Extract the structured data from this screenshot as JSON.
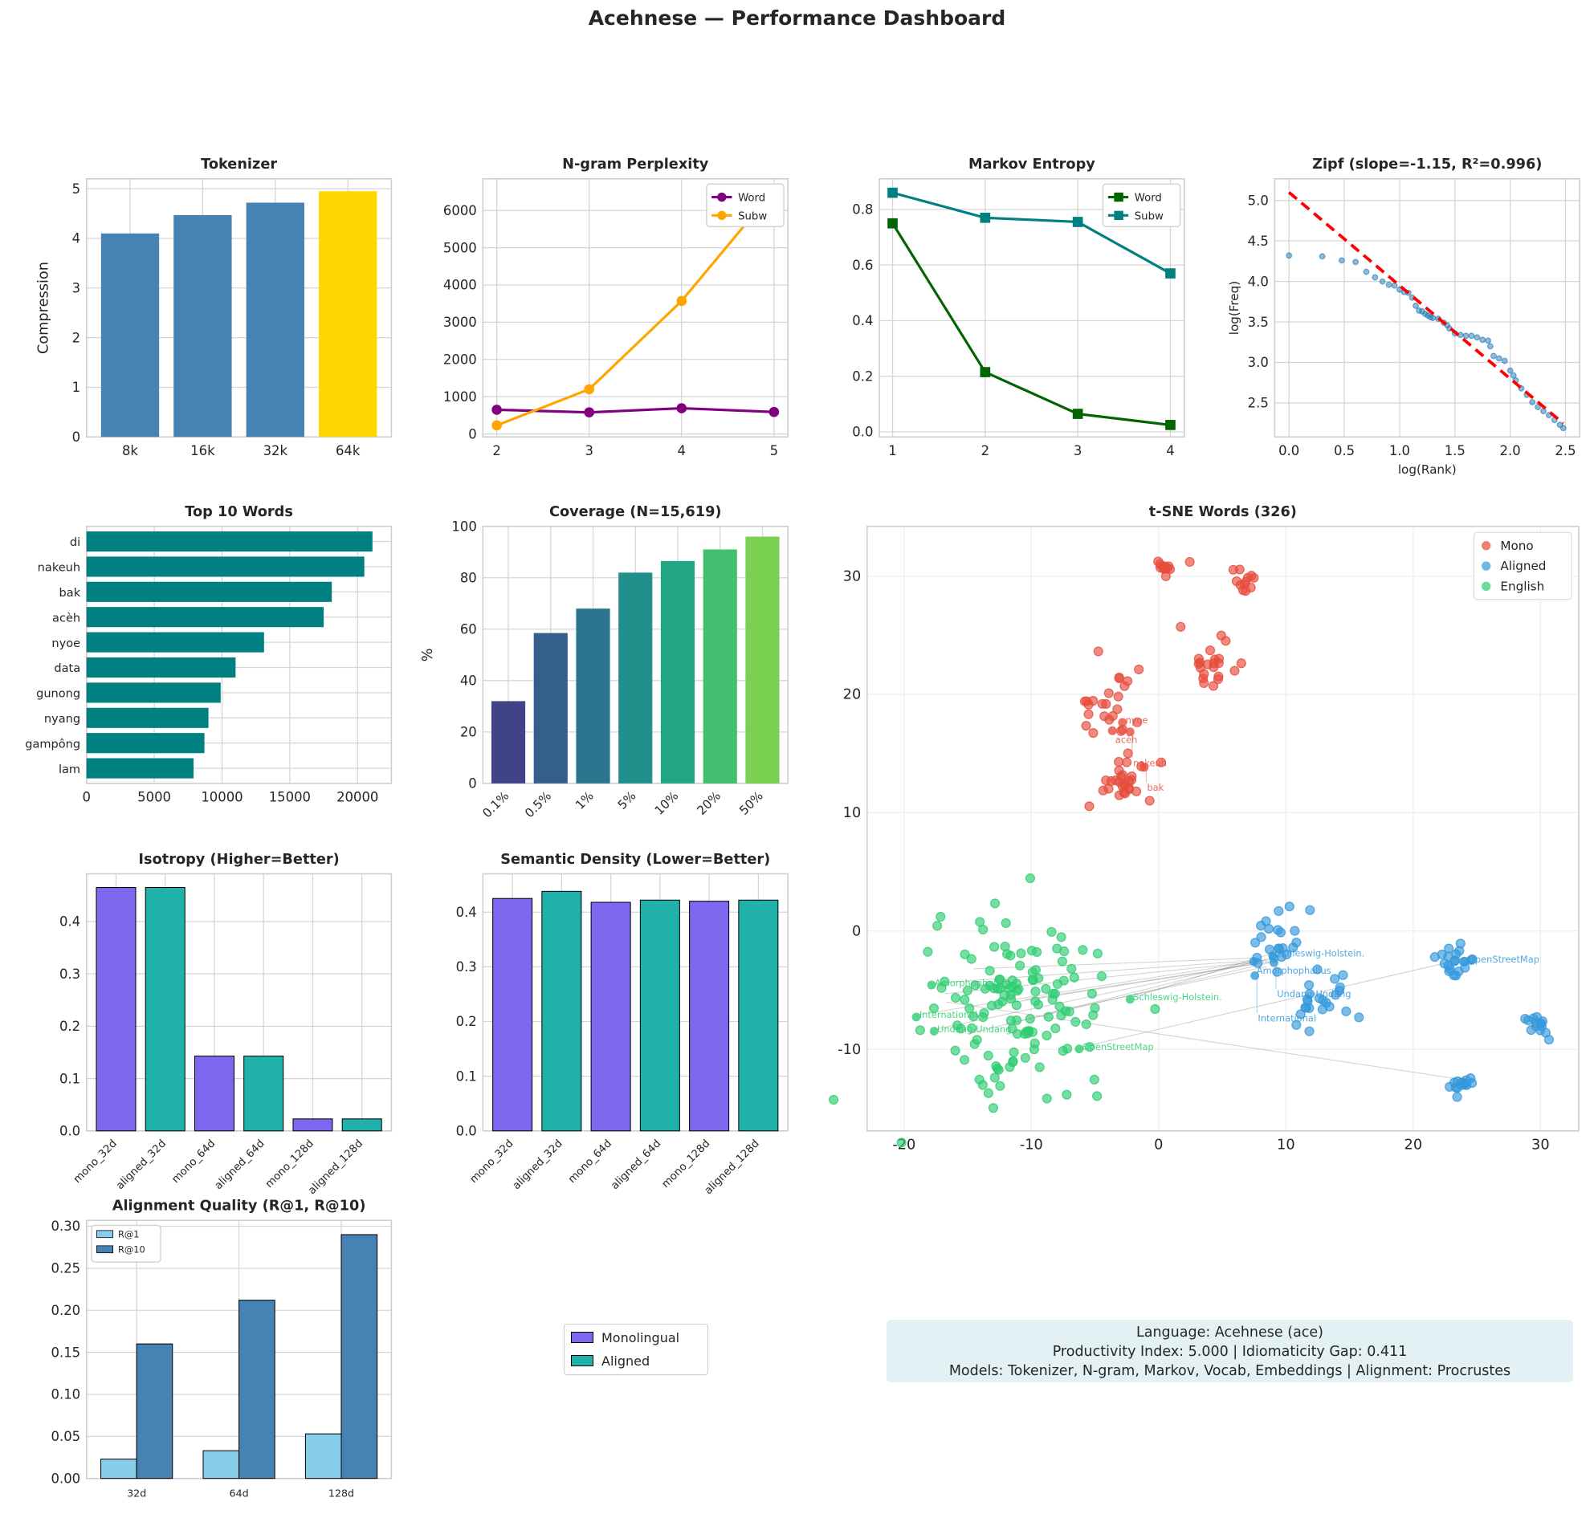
{
  "title": "Acehnese — Performance Dashboard",
  "info_box": {
    "line1": "Language: Acehnese (ace)",
    "line2": "Productivity Index: 5.000  |  Idiomaticity Gap: 0.411",
    "line3": "Models: Tokenizer, N-gram, Markov, Vocab, Embeddings  |  Alignment: Procrustes"
  },
  "shared_legend": {
    "items": [
      {
        "label": "Monolingual",
        "color": "#7b68ee"
      },
      {
        "label": "Aligned",
        "color": "#20b2aa"
      }
    ]
  },
  "chart_data": [
    {
      "id": "tokenizer",
      "type": "bar",
      "title": "Tokenizer",
      "xlabel": "",
      "ylabel": "Compression",
      "categories": [
        "8k",
        "16k",
        "32k",
        "64k"
      ],
      "values": [
        4.1,
        4.47,
        4.72,
        4.95
      ],
      "colors": [
        "#4682b4",
        "#4682b4",
        "#4682b4",
        "#ffd700"
      ],
      "ylim": [
        0,
        5.2
      ],
      "yticks": [
        0,
        1,
        2,
        3,
        4,
        5
      ],
      "grid": true
    },
    {
      "id": "ngram",
      "type": "line",
      "title": "N-gram Perplexity",
      "x": [
        2,
        3,
        4,
        5
      ],
      "xticks": [
        2,
        3,
        4,
        5
      ],
      "yticks": [
        0,
        1000,
        2000,
        3000,
        4000,
        5000,
        6000
      ],
      "ylim": [
        -80,
        6850
      ],
      "series": [
        {
          "name": "Word",
          "values": [
            650,
            580,
            690,
            590
          ],
          "color": "#800080",
          "marker": "circle"
        },
        {
          "name": "Subw",
          "values": [
            230,
            1200,
            3570,
            6550
          ],
          "color": "#ffa500",
          "marker": "circle"
        }
      ],
      "legend": "top-right",
      "grid": true
    },
    {
      "id": "markov",
      "type": "line",
      "title": "Markov Entropy",
      "x": [
        1,
        2,
        3,
        4
      ],
      "xticks": [
        1,
        2,
        3,
        4
      ],
      "yticks": [
        0.0,
        0.2,
        0.4,
        0.6,
        0.8
      ],
      "ytick_labels": [
        "0.0",
        "0.2",
        "0.4",
        "0.6",
        "0.8"
      ],
      "ylim": [
        -0.018,
        0.91
      ],
      "series": [
        {
          "name": "Word",
          "values": [
            0.75,
            0.215,
            0.065,
            0.025
          ],
          "color": "#006400",
          "marker": "square"
        },
        {
          "name": "Subw",
          "values": [
            0.86,
            0.77,
            0.755,
            0.57
          ],
          "color": "#008080",
          "marker": "square"
        }
      ],
      "legend": "top-right",
      "grid": true
    },
    {
      "id": "zipf",
      "type": "scatter",
      "title": "Zipf (slope=-1.15, R²=0.996)",
      "xlabel": "log(Rank)",
      "ylabel": "log(Freq)",
      "xlim": [
        -0.129,
        2.628
      ],
      "ylim": [
        2.081,
        5.267
      ],
      "xticks": [
        0.0,
        0.5,
        1.0,
        1.5,
        2.0,
        2.5
      ],
      "xtick_labels": [
        "0.0",
        "0.5",
        "1.0",
        "1.5",
        "2.0",
        "2.5"
      ],
      "yticks": [
        2.5,
        3.0,
        3.5,
        4.0,
        4.5,
        5.0
      ],
      "ytick_labels": [
        "2.5",
        "3.0",
        "3.5",
        "4.0",
        "4.5",
        "5.0"
      ],
      "points": [
        [
          0,
          4.32
        ],
        [
          0.301,
          4.31
        ],
        [
          0.477,
          4.26
        ],
        [
          0.602,
          4.24
        ],
        [
          0.699,
          4.12
        ],
        [
          0.778,
          4.05
        ],
        [
          0.845,
          4.0
        ],
        [
          0.903,
          3.96
        ],
        [
          0.954,
          3.95
        ],
        [
          1.0,
          3.9
        ],
        [
          1.041,
          3.87
        ],
        [
          1.079,
          3.86
        ],
        [
          1.114,
          3.8
        ],
        [
          1.146,
          3.7
        ],
        [
          1.176,
          3.64
        ],
        [
          1.204,
          3.63
        ],
        [
          1.23,
          3.6
        ],
        [
          1.255,
          3.58
        ],
        [
          1.279,
          3.56
        ],
        [
          1.301,
          3.55
        ],
        [
          1.35,
          3.54
        ],
        [
          1.4,
          3.49
        ],
        [
          1.43,
          3.46
        ],
        [
          1.45,
          3.42
        ],
        [
          1.5,
          3.36
        ],
        [
          1.55,
          3.34
        ],
        [
          1.6,
          3.33
        ],
        [
          1.65,
          3.33
        ],
        [
          1.7,
          3.31
        ],
        [
          1.75,
          3.28
        ],
        [
          1.8,
          3.27
        ],
        [
          1.82,
          3.2
        ],
        [
          1.85,
          3.08
        ],
        [
          1.9,
          3.05
        ],
        [
          1.95,
          3.02
        ],
        [
          2.0,
          2.9
        ],
        [
          2.03,
          2.84
        ],
        [
          2.05,
          2.78
        ],
        [
          2.1,
          2.68
        ],
        [
          2.15,
          2.6
        ],
        [
          2.2,
          2.51
        ],
        [
          2.25,
          2.45
        ],
        [
          2.3,
          2.4
        ],
        [
          2.35,
          2.35
        ],
        [
          2.4,
          2.29
        ],
        [
          2.45,
          2.23
        ],
        [
          2.48,
          2.19
        ]
      ],
      "point_color": "#1f77b4",
      "fit_line": {
        "slope": -1.15,
        "intercept": 5.1,
        "x_range": [
          0,
          2.48
        ],
        "color": "#ff0000",
        "style": "dashed"
      },
      "grid": true
    },
    {
      "id": "top_words",
      "type": "bar",
      "orientation": "horizontal",
      "title": "Top 10 Words",
      "categories": [
        "di",
        "nakeuh",
        "bak",
        "acèh",
        "nyoe",
        "data",
        "gunong",
        "nyang",
        "gampông",
        "lam"
      ],
      "values": [
        21100,
        20500,
        18100,
        17500,
        13100,
        11000,
        9900,
        9000,
        8700,
        7900
      ],
      "color": "#008080",
      "xlim": [
        0,
        22500
      ],
      "xticks": [
        0,
        5000,
        10000,
        15000,
        20000
      ],
      "grid": true
    },
    {
      "id": "coverage",
      "type": "bar",
      "title": "Coverage (N=15,619)",
      "ylabel": "%",
      "categories": [
        "0.1%",
        "0.5%",
        "1%",
        "5%",
        "10%",
        "20%",
        "50%"
      ],
      "values": [
        32,
        58.5,
        68,
        82,
        86.5,
        91,
        96
      ],
      "colors": [
        "#404387",
        "#345f8d",
        "#2a768e",
        "#21908d",
        "#22a785",
        "#44bf70",
        "#7ad151"
      ],
      "ylim": [
        0,
        100
      ],
      "yticks": [
        0,
        20,
        40,
        60,
        80,
        100
      ],
      "grid": true
    },
    {
      "id": "tsne",
      "type": "scatter",
      "title": "t-SNE Words (326)",
      "xlim": [
        -22.9,
        33
      ],
      "ylim": [
        -16.9,
        34.2
      ],
      "xticks": [
        -20,
        -10,
        0,
        10,
        20,
        30
      ],
      "yticks": [
        -10,
        0,
        10,
        20,
        30
      ],
      "legend": "top-right",
      "series": [
        {
          "name": "Mono",
          "color": "#e74c3c",
          "clusters": [
            {
              "center": [
                0.5,
                31
              ],
              "n": 12,
              "spread": 0.5
            },
            {
              "center": [
                7,
                29.5
              ],
              "n": 12,
              "spread": 0.6
            },
            {
              "center": [
                4,
                22.5
              ],
              "n": 22,
              "spread": 1.1
            },
            {
              "center": [
                -4,
                19
              ],
              "n": 24,
              "spread": 1.4
            },
            {
              "center": [
                -3,
                12.5
              ],
              "n": 28,
              "spread": 1.3
            }
          ],
          "labels": [
            {
              "text": "nyoe",
              "at": [
                -2.6,
                17.8
              ]
            },
            {
              "text": "acèh",
              "at": [
                -3.4,
                17.1
              ]
            },
            {
              "text": "nakeuh",
              "at": [
                -2.0,
                17.0
              ]
            },
            {
              "text": "bak",
              "at": [
                -0.9,
                14.0
              ]
            }
          ]
        },
        {
          "name": "Aligned",
          "color": "#3498db",
          "clusters": [
            {
              "center": [
                9,
                -1
              ],
              "n": 24,
              "spread": 1.5
            },
            {
              "center": [
                13,
                -6
              ],
              "n": 22,
              "spread": 1.5
            },
            {
              "center": [
                23.5,
                -2.5
              ],
              "n": 20,
              "spread": 0.8
            },
            {
              "center": [
                29.8,
                -8
              ],
              "n": 14,
              "spread": 0.5
            },
            {
              "center": [
                23.8,
                -12.8
              ],
              "n": 14,
              "spread": 0.5
            }
          ],
          "labels": [
            {
              "text": "Schleswig-Holstein.",
              "at": [
                9.2,
                -1.9
              ]
            },
            {
              "text": "Amorphophallus",
              "at": [
                7.7,
                -2.4
              ]
            },
            {
              "text": "Undang-Undang",
              "at": [
                9.3,
                -2.5
              ]
            },
            {
              "text": "International",
              "at": [
                7.8,
                -3.6
              ]
            },
            {
              "text": "OpenStreetMap",
              "at": [
                24.3,
                -2.4
              ]
            }
          ]
        },
        {
          "name": "English",
          "color": "#2ecc71",
          "clusters": [
            {
              "center": [
                -11,
                -6
              ],
              "n": 134,
              "spread": 3.4
            }
          ],
          "labels": [
            {
              "text": "Amorphophallus",
              "at": [
                -17.6,
                -4.4
              ]
            },
            {
              "text": "International",
              "at": [
                -18.8,
                -7.1
              ]
            },
            {
              "text": "Undang-Undang",
              "at": [
                -17.4,
                -8.3
              ]
            },
            {
              "text": "Schleswig-Holstein.",
              "at": [
                -2.0,
                -5.6
              ]
            },
            {
              "text": "OpenStreetMap",
              "at": [
                -6.0,
                -9.8
              ]
            }
          ]
        }
      ],
      "alignment_links": [
        [
          [
            -17.5,
            -4.4
          ],
          [
            7.5,
            -2.5
          ]
        ],
        [
          [
            -19,
            -7.1
          ],
          [
            7.4,
            -2.6
          ]
        ],
        [
          [
            -17.5,
            -8.3
          ],
          [
            9.0,
            -2.3
          ]
        ],
        [
          [
            -2,
            -5.6
          ],
          [
            9.2,
            -1.8
          ]
        ],
        [
          [
            -6,
            -9.8
          ],
          [
            23.8,
            -2.4
          ]
        ],
        [
          [
            -16.8,
            -5.3
          ],
          [
            8.6,
            -2.5
          ]
        ],
        [
          [
            -13,
            -6.3
          ],
          [
            8.8,
            -2.6
          ]
        ],
        [
          [
            -12,
            -7.9
          ],
          [
            9.0,
            -2.6
          ]
        ],
        [
          [
            -10.5,
            -5.8
          ],
          [
            8.0,
            -2.7
          ]
        ],
        [
          [
            -15,
            -8.7
          ],
          [
            8.4,
            -2.4
          ]
        ],
        [
          [
            -14.5,
            -3.2
          ],
          [
            7.3,
            -2.3
          ]
        ],
        [
          [
            -16.7,
            -6.0
          ],
          [
            23.5,
            -12.5
          ]
        ],
        [
          [
            -9,
            -7.0
          ],
          [
            8.5,
            -3.0
          ]
        ]
      ],
      "grid": true
    },
    {
      "id": "isotropy",
      "type": "bar",
      "title": "Isotropy (Higher=Better)",
      "categories": [
        "mono_32d",
        "aligned_32d",
        "mono_64d",
        "aligned_64d",
        "mono_128d",
        "aligned_128d"
      ],
      "values": [
        0.465,
        0.465,
        0.143,
        0.143,
        0.023,
        0.023
      ],
      "colors": [
        "#7b68ee",
        "#20b2aa",
        "#7b68ee",
        "#20b2aa",
        "#7b68ee",
        "#20b2aa"
      ],
      "ylim": [
        0,
        0.491
      ],
      "yticks": [
        0.0,
        0.1,
        0.2,
        0.3,
        0.4
      ],
      "ytick_labels": [
        "0.0",
        "0.1",
        "0.2",
        "0.3",
        "0.4"
      ],
      "grid": true
    },
    {
      "id": "semantic_density",
      "type": "bar",
      "title": "Semantic Density (Lower=Better)",
      "categories": [
        "mono_32d",
        "aligned_32d",
        "mono_64d",
        "aligned_64d",
        "mono_128d",
        "aligned_128d"
      ],
      "values": [
        0.425,
        0.438,
        0.418,
        0.422,
        0.42,
        0.422
      ],
      "colors": [
        "#7b68ee",
        "#20b2aa",
        "#7b68ee",
        "#20b2aa",
        "#7b68ee",
        "#20b2aa"
      ],
      "ylim": [
        0,
        0.47
      ],
      "yticks": [
        0.0,
        0.1,
        0.2,
        0.3,
        0.4
      ],
      "ytick_labels": [
        "0.0",
        "0.1",
        "0.2",
        "0.3",
        "0.4"
      ],
      "grid": true
    },
    {
      "id": "alignment",
      "type": "bar",
      "title": "Alignment Quality (R@1, R@10)",
      "categories": [
        "32d",
        "64d",
        "128d"
      ],
      "series": [
        {
          "name": "R@1",
          "values": [
            0.023,
            0.033,
            0.053
          ],
          "color": "#87ceeb"
        },
        {
          "name": "R@10",
          "values": [
            0.16,
            0.212,
            0.29
          ],
          "color": "#4682b4"
        }
      ],
      "ylim": [
        0,
        0.307
      ],
      "yticks": [
        0.0,
        0.05,
        0.1,
        0.15,
        0.2,
        0.25,
        0.3
      ],
      "ytick_labels": [
        "0.00",
        "0.05",
        "0.10",
        "0.15",
        "0.20",
        "0.25",
        "0.30"
      ],
      "legend": "top-left",
      "grid": true
    }
  ]
}
